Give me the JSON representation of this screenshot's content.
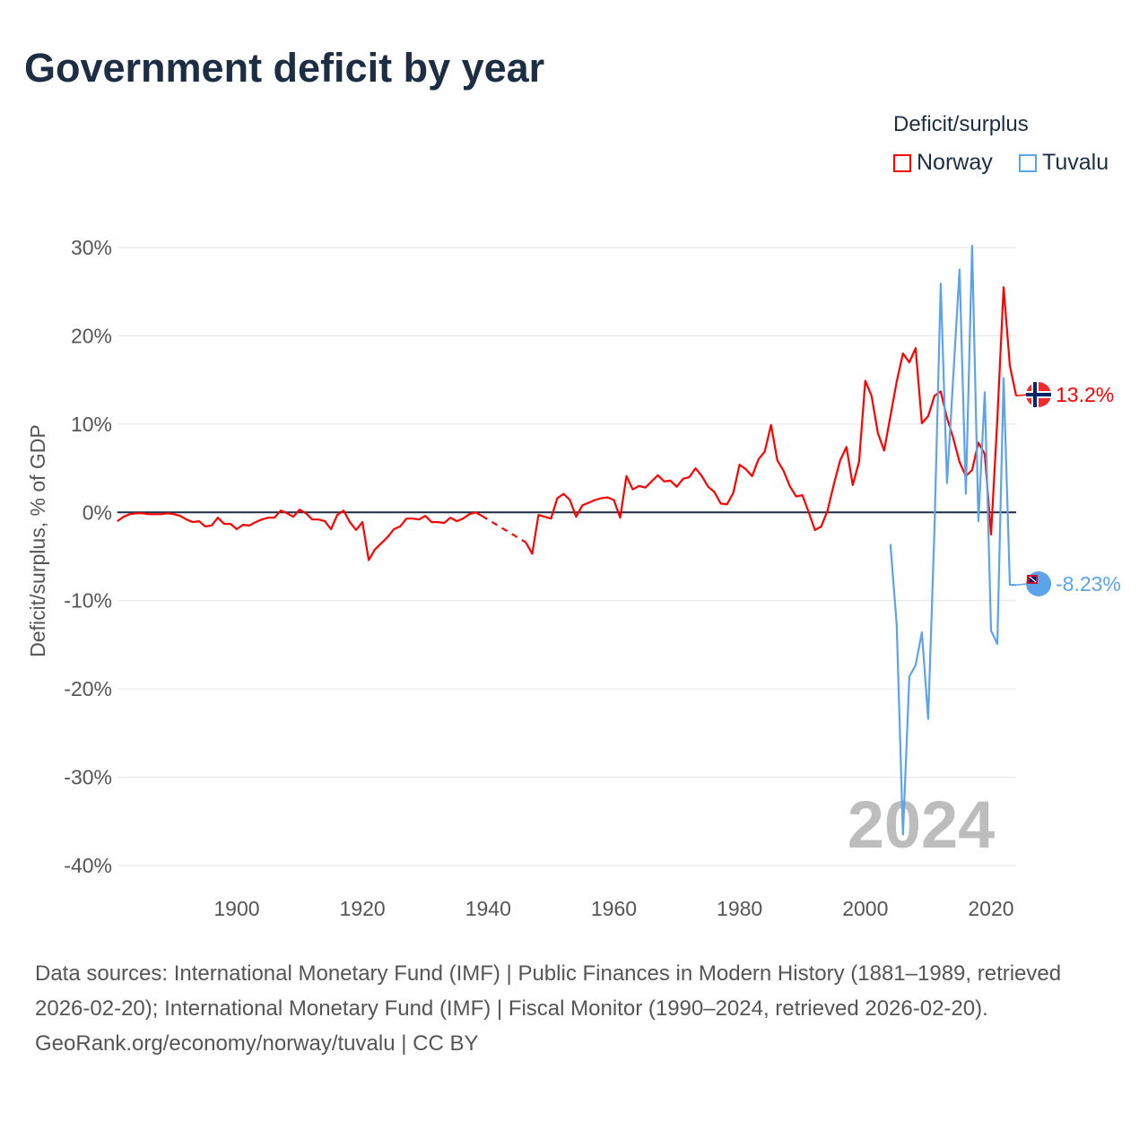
{
  "title": "Government deficit by year",
  "legend": {
    "title": "Deficit/surplus",
    "items": [
      {
        "name": "Norway",
        "color": "#ff0000"
      },
      {
        "name": "Tuvalu",
        "color": "#5ba3ea"
      }
    ]
  },
  "chart_data": {
    "type": "line",
    "title": "Government deficit by year",
    "xlabel": "",
    "ylabel": "Deficit/surplus, % of GDP",
    "xlim": [
      1881,
      2024
    ],
    "ylim": [
      -40,
      30
    ],
    "x_ticks": [
      "1900",
      "1920",
      "1940",
      "1960",
      "1980",
      "2000",
      "2020"
    ],
    "y_ticks": [
      "30%",
      "20%",
      "10%",
      "0%",
      "-10%",
      "-20%",
      "-30%",
      "-40%"
    ],
    "grid": true,
    "year_label": "2024",
    "series": [
      {
        "name": "Norway",
        "color": "#ff0000",
        "end_label": "13.2%",
        "start_year": 1881,
        "values": [
          -1.0,
          -0.5,
          -0.2,
          -0.1,
          -0.1,
          -0.2,
          -0.2,
          -0.2,
          -0.1,
          -0.2,
          -0.4,
          -0.8,
          -1.1,
          -1.0,
          -1.6,
          -1.5,
          -0.6,
          -1.3,
          -1.3,
          -1.9,
          -1.4,
          -1.5,
          -1.1,
          -0.8,
          -0.6,
          -0.6,
          0.2,
          -0.1,
          -0.5,
          0.3,
          -0.1,
          -0.8,
          -0.8,
          -1.0,
          -1.9,
          -0.3,
          0.2,
          -1.1,
          -2.0,
          -1.1,
          -5.4,
          -4.2,
          -3.5,
          -2.8,
          -1.9,
          -1.6,
          -0.7,
          -0.7,
          -0.8,
          -0.4,
          -1.1,
          -1.1,
          -1.2,
          -0.6,
          -1.0,
          -0.7,
          -0.2,
          0.0,
          -0.4,
          null,
          null,
          null,
          null,
          null,
          null,
          -3.4,
          -4.7,
          -0.3,
          -0.5,
          -0.7,
          1.6,
          2.1,
          1.4,
          -0.5,
          0.8,
          1.1,
          1.4,
          1.6,
          1.7,
          1.4,
          -0.6,
          4.1,
          2.6,
          3.0,
          2.8,
          3.5,
          4.2,
          3.5,
          3.6,
          2.9,
          3.8,
          4.0,
          5.0,
          4.1,
          2.9,
          2.3,
          1.0,
          0.9,
          2.2,
          5.4,
          4.9,
          4.1,
          6.0,
          6.9,
          9.9,
          5.9,
          4.7,
          2.95,
          1.8,
          1.95,
          0.0,
          -2.0,
          -1.6,
          0.2,
          3.2,
          5.9,
          7.4,
          3.1,
          5.7,
          14.9,
          13.2,
          9.0,
          7.0,
          10.9,
          14.8,
          18.0,
          17.0,
          18.6,
          10.1,
          10.9,
          13.2,
          13.7,
          10.7,
          8.4,
          5.7,
          4.1,
          4.8,
          7.9,
          6.6,
          -2.5,
          10.5,
          25.5,
          16.6,
          13.2
        ]
      },
      {
        "name": "Tuvalu",
        "color": "#5ba3ea",
        "end_label": "-8.23%",
        "start_year": 2004,
        "values": [
          -3.6,
          -12.7,
          -36.5,
          -18.6,
          -17.3,
          -13.6,
          -23.4,
          -2.0,
          25.9,
          3.3,
          15.4,
          27.5,
          2.1,
          30.2,
          -1.0,
          13.6,
          -13.4,
          -14.9,
          15.2,
          -8.2,
          -8.23
        ]
      }
    ]
  },
  "footer": {
    "sources": "Data sources: International Monetary Fund (IMF) | Public Finances in Modern History (1881–1989, retrieved 2026-02-20); International Monetary Fund (IMF) | Fiscal Monitor (1990–2024, retrieved 2026-02-20).",
    "credit": "GeoRank.org/economy/norway/tuvalu | CC BY"
  }
}
